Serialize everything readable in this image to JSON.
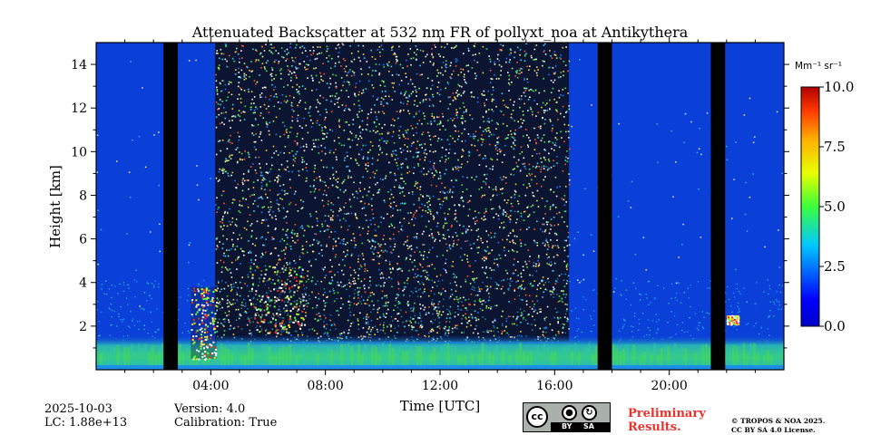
{
  "chart_data": {
    "type": "heatmap",
    "title": "Attenuated Backscatter at 532 nm FR of pollyxt_noa at Antikythera",
    "xlabel": "Time [UTC]",
    "ylabel": "Height [km]",
    "xlim_hours": [
      0,
      24
    ],
    "ylim_km": [
      0,
      15
    ],
    "x_ticks": [
      {
        "value": 4,
        "label": "04:00"
      },
      {
        "value": 8,
        "label": "08:00"
      },
      {
        "value": 12,
        "label": "12:00"
      },
      {
        "value": 16,
        "label": "16:00"
      },
      {
        "value": 20,
        "label": "20:00"
      }
    ],
    "y_ticks": [
      {
        "value": 2,
        "label": "2"
      },
      {
        "value": 4,
        "label": "4"
      },
      {
        "value": 6,
        "label": "6"
      },
      {
        "value": 8,
        "label": "8"
      },
      {
        "value": 10,
        "label": "10"
      },
      {
        "value": 12,
        "label": "12"
      },
      {
        "value": 14,
        "label": "14"
      }
    ],
    "colorbar": {
      "label": "Mm⁻¹ sr⁻¹",
      "range": [
        0,
        10
      ],
      "ticks": [
        {
          "value": 0,
          "label": "0.0"
        },
        {
          "value": 2.5,
          "label": "2.5"
        },
        {
          "value": 5,
          "label": "5.0"
        },
        {
          "value": 7.5,
          "label": "7.5"
        },
        {
          "value": 10,
          "label": "10.0"
        }
      ],
      "colormap": "jet"
    },
    "no_data_periods_hours": [
      [
        2.35,
        2.85
      ],
      [
        17.5,
        18.0
      ],
      [
        21.45,
        21.95
      ]
    ],
    "daylight_noise_period_hours": [
      4.15,
      16.5
    ],
    "boundary_layer_top_km": 1.0,
    "cloud_features": [
      {
        "time_range_hours": [
          3.3,
          4.2
        ],
        "height_range_km": [
          0.5,
          3.8
        ]
      },
      {
        "time_range_hours": [
          5.3,
          7.3
        ],
        "height_range_km": [
          1.7,
          4.8
        ]
      },
      {
        "time_range_hours": [
          22.0,
          22.4
        ],
        "height_range_km": [
          2.1,
          2.5
        ]
      }
    ]
  },
  "footer": {
    "date": "2025-10-03",
    "lc": "LC: 1.88e+13",
    "version": "Version: 4.0",
    "calibration": "Calibration: True",
    "preliminary_line1": "Preliminary",
    "preliminary_line2": "Results.",
    "copyright_line1": "© TROPOS & NOA 2025.",
    "copyright_line2": "CC BY SA 4.0 License.",
    "cc_badge": {
      "cc": "cc",
      "by": "BY",
      "sa": "SA"
    }
  },
  "colors": {
    "background_blue": "#0a40d8",
    "no_data": "#000000",
    "boundary_layer": "#1fbf6a"
  }
}
